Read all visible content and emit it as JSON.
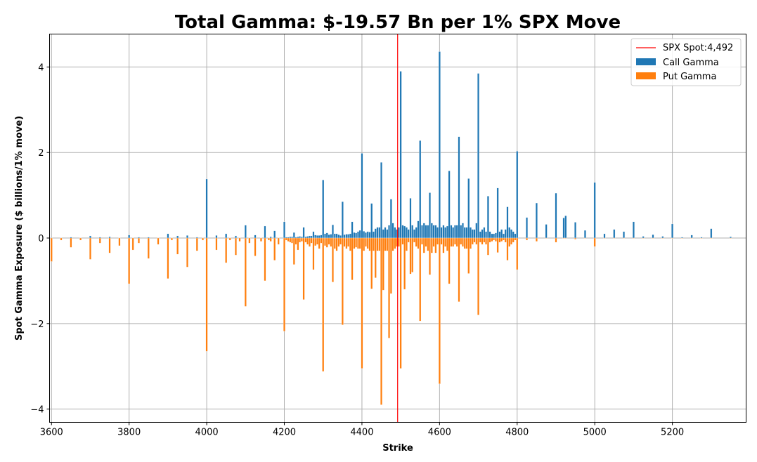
{
  "chart_data": {
    "type": "bar",
    "title": "Total Gamma: $-19.57 Bn per 1% SPX Move",
    "xlabel": "Strike",
    "ylabel": "Spot Gamma Exposure ($ billions/1% move)",
    "xlim": [
      3595,
      5390
    ],
    "ylim": [
      -4.31,
      4.77
    ],
    "xticks": [
      3600,
      3800,
      4000,
      4200,
      4400,
      4600,
      4800,
      5000,
      5200
    ],
    "yticks": [
      -4,
      -2,
      0,
      2,
      4
    ],
    "grid": true,
    "legend_position": "top-right",
    "spot": {
      "label": "SPX Spot:4,492",
      "value": 4492,
      "color": "#ff0000"
    },
    "series": [
      {
        "name": "Call Gamma",
        "color": "#1f77b4"
      },
      {
        "name": "Put Gamma",
        "color": "#ff7f0e"
      }
    ],
    "strikes": [
      3600,
      3625,
      3650,
      3675,
      3700,
      3725,
      3750,
      3775,
      3800,
      3810,
      3825,
      3850,
      3875,
      3900,
      3910,
      3925,
      3950,
      3975,
      3990,
      4000,
      4025,
      4050,
      4060,
      4075,
      4085,
      4100,
      4110,
      4125,
      4140,
      4150,
      4160,
      4165,
      4175,
      4185,
      4200,
      4205,
      4210,
      4215,
      4220,
      4225,
      4230,
      4235,
      4240,
      4245,
      4250,
      4255,
      4260,
      4265,
      4270,
      4275,
      4280,
      4285,
      4290,
      4295,
      4300,
      4305,
      4310,
      4315,
      4320,
      4325,
      4330,
      4335,
      4340,
      4345,
      4350,
      4355,
      4360,
      4365,
      4370,
      4375,
      4380,
      4385,
      4390,
      4395,
      4400,
      4405,
      4410,
      4415,
      4420,
      4425,
      4430,
      4435,
      4440,
      4445,
      4450,
      4455,
      4460,
      4465,
      4470,
      4475,
      4480,
      4485,
      4490,
      4495,
      4500,
      4505,
      4510,
      4515,
      4520,
      4525,
      4530,
      4535,
      4540,
      4545,
      4550,
      4555,
      4560,
      4565,
      4570,
      4575,
      4580,
      4585,
      4590,
      4595,
      4600,
      4605,
      4610,
      4615,
      4620,
      4625,
      4630,
      4635,
      4640,
      4645,
      4650,
      4655,
      4660,
      4665,
      4670,
      4675,
      4680,
      4685,
      4690,
      4695,
      4700,
      4705,
      4710,
      4715,
      4720,
      4725,
      4730,
      4735,
      4740,
      4745,
      4750,
      4755,
      4760,
      4765,
      4770,
      4775,
      4780,
      4785,
      4790,
      4795,
      4800,
      4825,
      4850,
      4875,
      4900,
      4920,
      4925,
      4950,
      4975,
      5000,
      5025,
      5050,
      5075,
      5100,
      5125,
      5150,
      5175,
      5200,
      5225,
      5250,
      5275,
      5300,
      5350
    ],
    "call_gamma": [
      0,
      0,
      0.02,
      0,
      0.05,
      0.02,
      0.03,
      0,
      0.07,
      0,
      0.02,
      0.02,
      0,
      0.1,
      0,
      0.05,
      0.06,
      0.02,
      0,
      1.38,
      0.06,
      0.1,
      0,
      0.05,
      0,
      0.3,
      0,
      0.07,
      0,
      0.28,
      0,
      0.03,
      0.17,
      0,
      0.38,
      0.02,
      0.02,
      0.03,
      0.03,
      0.13,
      0.02,
      0.03,
      0.04,
      0.03,
      0.25,
      0.03,
      0.04,
      0.05,
      0.05,
      0.15,
      0.07,
      0.06,
      0.06,
      0.07,
      1.36,
      0.1,
      0.12,
      0.08,
      0.09,
      0.31,
      0.1,
      0.1,
      0.08,
      0.06,
      0.85,
      0.08,
      0.09,
      0.09,
      0.1,
      0.38,
      0.13,
      0.12,
      0.15,
      0.18,
      1.98,
      0.16,
      0.13,
      0.15,
      0.14,
      0.81,
      0.15,
      0.22,
      0.25,
      0.25,
      1.77,
      0.2,
      0.25,
      0.2,
      0.3,
      0.91,
      0.35,
      0.25,
      0.2,
      0.25,
      3.9,
      0.3,
      0.28,
      0.25,
      0.2,
      0.93,
      0.3,
      0.2,
      0.25,
      0.4,
      2.28,
      0.3,
      0.35,
      0.3,
      0.3,
      1.06,
      0.35,
      0.3,
      0.3,
      0.25,
      4.36,
      0.25,
      0.3,
      0.25,
      0.28,
      1.57,
      0.3,
      0.25,
      0.3,
      0.3,
      2.37,
      0.3,
      0.35,
      0.25,
      0.25,
      1.39,
      0.25,
      0.2,
      0.2,
      0.35,
      3.85,
      0.15,
      0.2,
      0.25,
      0.15,
      0.98,
      0.15,
      0.1,
      0.1,
      0.12,
      1.17,
      0.15,
      0.2,
      0.1,
      0.2,
      0.73,
      0.25,
      0.2,
      0.15,
      0.1,
      2.03,
      0.48,
      0.82,
      0.32,
      1.05,
      0.47,
      0.52,
      0.37,
      0.18,
      1.3,
      0.1,
      0.2,
      0.15,
      0.38,
      0.04,
      0.08,
      0.04,
      0.33,
      0.02,
      0.07,
      0.02,
      0.22,
      0.03
    ],
    "put_gamma": [
      -0.55,
      -0.05,
      -0.22,
      -0.05,
      -0.5,
      -0.12,
      -0.35,
      -0.18,
      -1.07,
      -0.28,
      -0.12,
      -0.48,
      -0.15,
      -0.95,
      -0.05,
      -0.38,
      -0.68,
      -0.3,
      -0.05,
      -2.65,
      -0.28,
      -0.58,
      -0.05,
      -0.4,
      -0.08,
      -1.6,
      -0.12,
      -0.42,
      -0.08,
      -1.0,
      -0.05,
      -0.08,
      -0.52,
      -0.15,
      -2.18,
      -0.05,
      -0.08,
      -0.1,
      -0.12,
      -0.62,
      -0.15,
      -0.28,
      -0.1,
      -0.08,
      -1.44,
      -0.1,
      -0.15,
      -0.2,
      -0.12,
      -0.74,
      -0.18,
      -0.15,
      -0.25,
      -0.12,
      -3.12,
      -0.18,
      -0.22,
      -0.15,
      -0.2,
      -1.03,
      -0.25,
      -0.3,
      -0.2,
      -0.15,
      -2.03,
      -0.2,
      -0.25,
      -0.2,
      -0.3,
      -0.98,
      -0.25,
      -0.22,
      -0.25,
      -0.25,
      -3.05,
      -0.3,
      -0.2,
      -0.25,
      -0.3,
      -1.19,
      -0.3,
      -0.93,
      -0.3,
      -0.3,
      -3.9,
      -1.22,
      -0.3,
      -0.3,
      -2.34,
      -1.3,
      -0.3,
      -0.25,
      -0.2,
      -0.2,
      -3.05,
      -0.15,
      -1.2,
      -0.3,
      -0.1,
      -0.84,
      -0.8,
      -0.1,
      -0.2,
      -0.25,
      -1.94,
      -0.15,
      -0.35,
      -0.2,
      -0.3,
      -0.86,
      -0.35,
      -0.2,
      -0.35,
      -0.15,
      -3.41,
      -0.15,
      -0.35,
      -0.2,
      -0.3,
      -1.07,
      -0.2,
      -0.2,
      -0.15,
      -0.2,
      -1.49,
      -0.15,
      -0.2,
      -0.25,
      -0.25,
      -0.83,
      -0.25,
      -0.15,
      -0.1,
      -0.15,
      -1.8,
      -0.1,
      -0.15,
      -0.1,
      -0.15,
      -0.4,
      -0.1,
      -0.08,
      -0.05,
      -0.08,
      -0.34,
      -0.1,
      -0.08,
      -0.05,
      -0.1,
      -0.52,
      -0.2,
      -0.15,
      -0.1,
      -0.05,
      -0.74,
      -0.05,
      -0.08,
      0,
      -0.1,
      0,
      0,
      -0.03,
      0,
      -0.2,
      0,
      0,
      0,
      0,
      0,
      0,
      0,
      0,
      0,
      0,
      0,
      0,
      0
    ]
  }
}
